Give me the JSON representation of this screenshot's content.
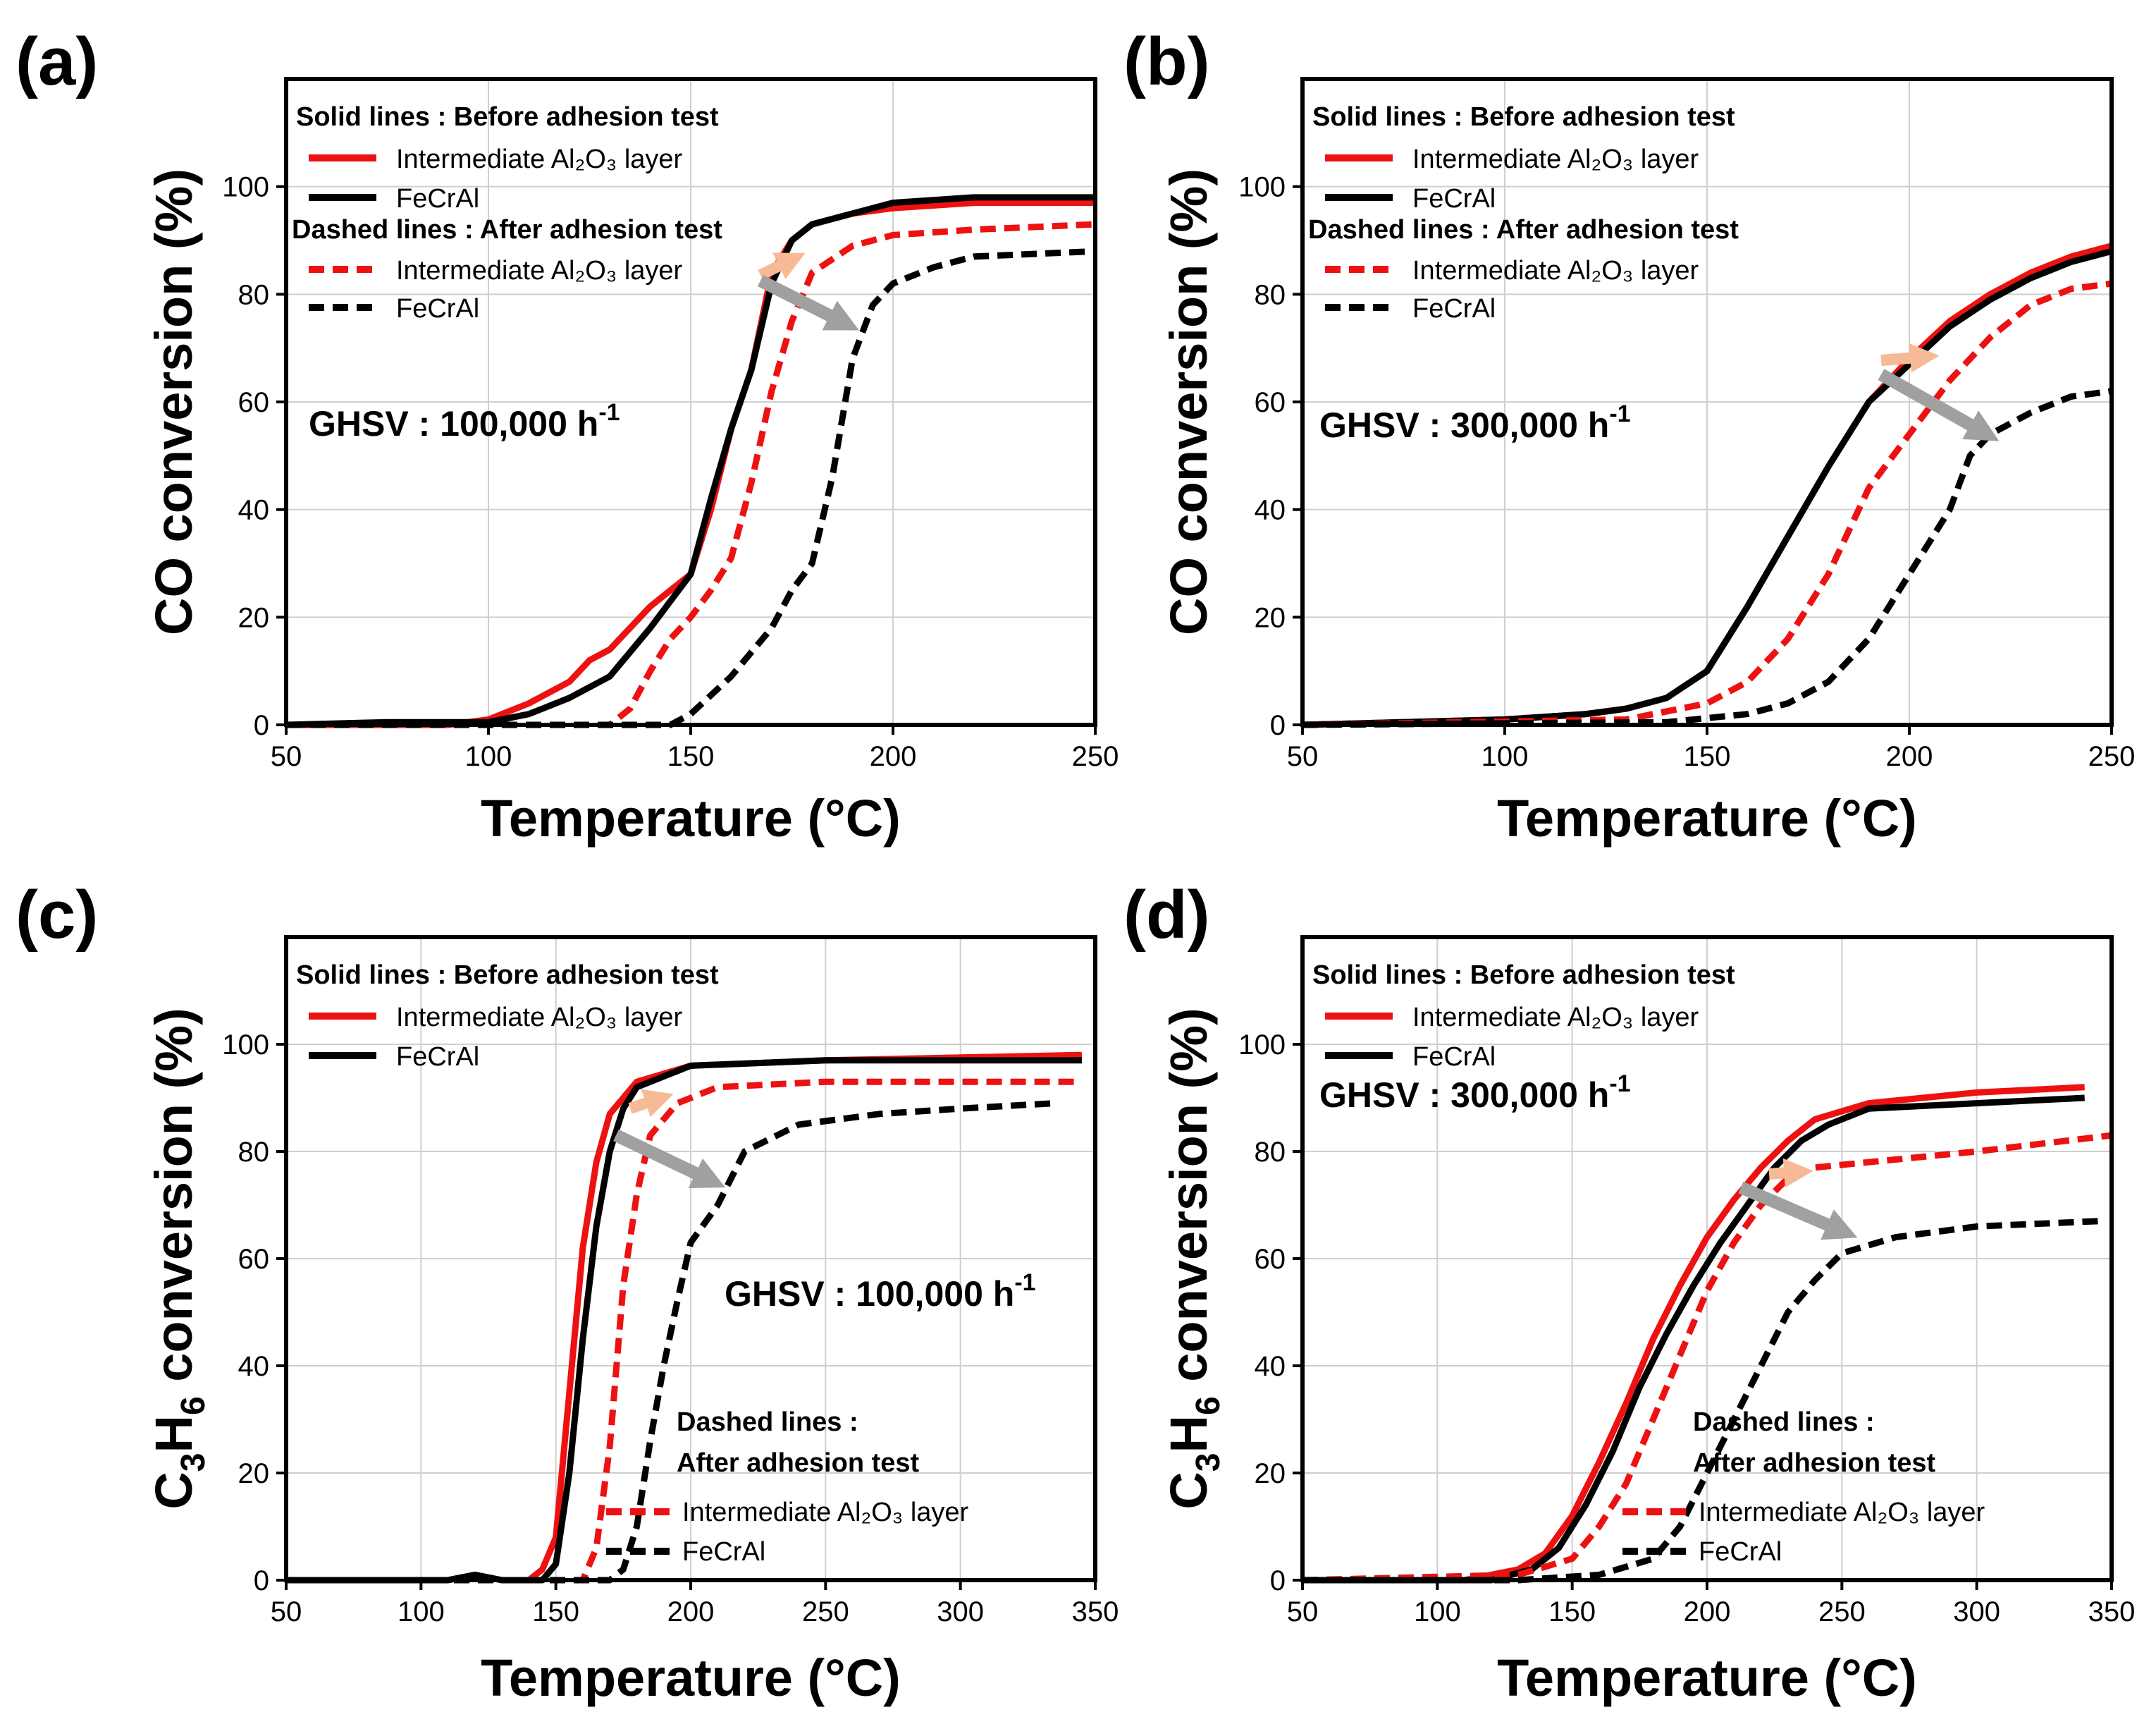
{
  "colors": {
    "intermediate": "#ee1111",
    "fecral": "#000000",
    "grid": "#cfcfcf",
    "arrow_orange": "#f6bb96",
    "arrow_gray": "#a0a0a0"
  },
  "chart_data": [
    {
      "type": "line",
      "panel_label": "(a)",
      "xlabel": "Temperature (°C)",
      "ylabel_main": "CO conversion (%)",
      "ylabel_sub": "",
      "xlim": [
        50,
        250
      ],
      "ylim": [
        0,
        120
      ],
      "xticks": [
        50,
        100,
        150,
        200,
        250
      ],
      "yticks": [
        0,
        20,
        40,
        60,
        80,
        100
      ],
      "grid": true,
      "ghsv": {
        "label": "GHSV  : 100,000 h",
        "sup": "-1"
      },
      "legend_solid_header": "Solid lines : Before adhesion test",
      "legend_dashed_header": "Dashed lines : After adhesion test",
      "legend_dashed_header_line1": "",
      "legend_dashed_header_line2": "",
      "legend_entries": [
        "Intermediate Al₂O₃ layer",
        "FeCrAl",
        "Intermediate Al₂O₃ layer",
        "FeCrAl"
      ],
      "series": [
        {
          "name": "Intermediate Al2O3 layer (before)",
          "style": "solid",
          "color": "intermediate",
          "x": [
            50,
            90,
            100,
            110,
            120,
            125,
            130,
            140,
            145,
            150,
            155,
            160,
            165,
            170,
            175,
            180,
            190,
            200,
            220,
            250
          ],
          "y": [
            0,
            0,
            1,
            4,
            8,
            12,
            14,
            22,
            25,
            28,
            40,
            55,
            66,
            84,
            90,
            93,
            95,
            96,
            97,
            97
          ]
        },
        {
          "name": "FeCrAl (before)",
          "style": "solid",
          "color": "fecral",
          "x": [
            50,
            75,
            100,
            110,
            120,
            130,
            140,
            145,
            150,
            155,
            160,
            165,
            170,
            175,
            180,
            190,
            200,
            220,
            250
          ],
          "y": [
            0,
            0.5,
            0.5,
            2,
            5,
            9,
            18,
            23,
            28,
            42,
            55,
            66,
            82,
            90,
            93,
            95,
            97,
            98,
            98
          ]
        },
        {
          "name": "Intermediate Al2O3 layer (after)",
          "style": "dashed",
          "color": "intermediate",
          "x": [
            50,
            130,
            135,
            140,
            145,
            150,
            155,
            160,
            165,
            170,
            175,
            180,
            190,
            200,
            220,
            250
          ],
          "y": [
            0,
            0,
            3,
            10,
            16,
            20,
            25,
            31,
            45,
            62,
            75,
            84,
            89,
            91,
            92,
            93
          ]
        },
        {
          "name": "FeCrAl (after)",
          "style": "dashed",
          "color": "fecral",
          "x": [
            50,
            145,
            150,
            160,
            170,
            175,
            180,
            185,
            190,
            195,
            200,
            210,
            220,
            250
          ],
          "y": [
            0,
            0,
            2,
            9,
            18,
            25,
            30,
            46,
            68,
            78,
            82,
            85,
            87,
            88
          ]
        }
      ]
    },
    {
      "type": "line",
      "panel_label": "(b)",
      "xlabel": "Temperature (°C)",
      "ylabel_main": "CO conversion (%)",
      "ylabel_sub": "",
      "xlim": [
        50,
        250
      ],
      "ylim": [
        0,
        120
      ],
      "xticks": [
        50,
        100,
        150,
        200,
        250
      ],
      "yticks": [
        0,
        20,
        40,
        60,
        80,
        100
      ],
      "grid": true,
      "ghsv": {
        "label": "GHSV  : 300,000 h",
        "sup": "-1"
      },
      "legend_solid_header": "Solid lines : Before adhesion test",
      "legend_dashed_header": "Dashed lines : After adhesion test",
      "legend_dashed_header_line1": "",
      "legend_dashed_header_line2": "",
      "legend_entries": [
        "Intermediate Al₂O₃ layer",
        "FeCrAl",
        "Intermediate Al₂O₃ layer",
        "FeCrAl"
      ],
      "series": [
        {
          "name": "Intermediate Al2O3 layer (before)",
          "style": "solid",
          "color": "intermediate",
          "x": [
            50,
            100,
            120,
            130,
            140,
            150,
            160,
            170,
            180,
            190,
            200,
            210,
            220,
            230,
            240,
            250
          ],
          "y": [
            0,
            1,
            2,
            3,
            5,
            10,
            22,
            35,
            48,
            60,
            68,
            75,
            80,
            84,
            87,
            89
          ]
        },
        {
          "name": "FeCrAl (before)",
          "style": "solid",
          "color": "fecral",
          "x": [
            50,
            100,
            120,
            130,
            140,
            150,
            160,
            170,
            180,
            190,
            200,
            210,
            220,
            230,
            240,
            250
          ],
          "y": [
            0,
            1,
            2,
            3,
            5,
            10,
            22,
            35,
            48,
            60,
            67,
            74,
            79,
            83,
            86,
            88
          ]
        },
        {
          "name": "Intermediate Al2O3 layer (after)",
          "style": "dashed",
          "color": "intermediate",
          "x": [
            50,
            130,
            150,
            160,
            170,
            180,
            190,
            200,
            210,
            220,
            230,
            240,
            250
          ],
          "y": [
            0,
            1,
            4,
            8,
            16,
            28,
            44,
            54,
            64,
            72,
            78,
            81,
            82
          ]
        },
        {
          "name": "FeCrAl (after)",
          "style": "dashed",
          "color": "fecral",
          "x": [
            50,
            140,
            160,
            170,
            180,
            190,
            200,
            210,
            215,
            220,
            230,
            240,
            250
          ],
          "y": [
            0,
            0.5,
            2,
            4,
            8,
            16,
            28,
            40,
            50,
            54,
            58,
            61,
            62
          ]
        }
      ]
    },
    {
      "type": "line",
      "panel_label": "(c)",
      "xlabel": "Temperature (°C)",
      "ylabel_main": "C",
      "ylabel_sub": "3",
      "ylabel_main2": "H",
      "ylabel_sub2": "6",
      "ylabel_rest": " conversion (%)",
      "xlim": [
        50,
        350
      ],
      "ylim": [
        0,
        120
      ],
      "xticks": [
        50,
        100,
        150,
        200,
        250,
        300,
        350
      ],
      "yticks": [
        0,
        20,
        40,
        60,
        80,
        100
      ],
      "grid": true,
      "ghsv": {
        "label": "GHSV  : 100,000 h",
        "sup": "-1"
      },
      "legend_solid_header": "Solid lines : Before adhesion test",
      "legend_dashed_header": "",
      "legend_dashed_header_line1": "Dashed lines :",
      "legend_dashed_header_line2": "After adhesion test",
      "legend_entries": [
        "Intermediate Al₂O₃ layer",
        "FeCrAl",
        "Intermediate Al₂O₃ layer",
        "FeCrAl"
      ],
      "series": [
        {
          "name": "Intermediate Al2O3 layer (before)",
          "style": "solid",
          "color": "intermediate",
          "x": [
            50,
            110,
            120,
            130,
            140,
            145,
            150,
            155,
            160,
            165,
            170,
            180,
            200,
            250,
            345
          ],
          "y": [
            0,
            0,
            1,
            0,
            0,
            2,
            8,
            35,
            62,
            78,
            87,
            93,
            96,
            97,
            98
          ]
        },
        {
          "name": "FeCrAl (before)",
          "style": "solid",
          "color": "fecral",
          "x": [
            50,
            110,
            120,
            130,
            140,
            145,
            150,
            155,
            160,
            165,
            170,
            175,
            180,
            200,
            250,
            345
          ],
          "y": [
            0,
            0,
            1,
            0,
            0,
            0,
            3,
            20,
            45,
            66,
            80,
            88,
            92,
            96,
            97,
            97
          ]
        },
        {
          "name": "Intermediate Al2O3 layer (after)",
          "style": "dashed",
          "color": "intermediate",
          "x": [
            50,
            160,
            165,
            170,
            175,
            180,
            185,
            195,
            210,
            250,
            345
          ],
          "y": [
            0,
            0,
            6,
            25,
            55,
            72,
            83,
            89,
            92,
            93,
            93
          ]
        },
        {
          "name": "FeCrAl (after)",
          "style": "dashed",
          "color": "fecral",
          "x": [
            50,
            170,
            175,
            180,
            185,
            190,
            195,
            200,
            210,
            220,
            240,
            270,
            300,
            335
          ],
          "y": [
            0,
            0,
            2,
            10,
            26,
            40,
            52,
            63,
            70,
            80,
            85,
            87,
            88,
            89
          ]
        }
      ]
    },
    {
      "type": "line",
      "panel_label": "(d)",
      "xlabel": "Temperature (°C)",
      "ylabel_main": "C",
      "ylabel_sub": "3",
      "ylabel_main2": "H",
      "ylabel_sub2": "6",
      "ylabel_rest": " conversion (%)",
      "xlim": [
        50,
        350
      ],
      "ylim": [
        0,
        120
      ],
      "xticks": [
        50,
        100,
        150,
        200,
        250,
        300,
        350
      ],
      "yticks": [
        0,
        20,
        40,
        60,
        80,
        100
      ],
      "grid": true,
      "ghsv": {
        "label": "GHSV  : 300,000 h",
        "sup": "-1"
      },
      "legend_solid_header": "Solid lines : Before adhesion test",
      "legend_dashed_header": "",
      "legend_dashed_header_line1": "Dashed lines :",
      "legend_dashed_header_line2": "After adhesion test",
      "legend_entries": [
        "Intermediate Al₂O₃ layer",
        "FeCrAl",
        "Intermediate Al₂O₃ layer",
        "FeCrAl"
      ],
      "series": [
        {
          "name": "Intermediate Al2O3 layer (before)",
          "style": "solid",
          "color": "intermediate",
          "x": [
            50,
            110,
            130,
            140,
            150,
            160,
            170,
            180,
            190,
            200,
            210,
            220,
            230,
            240,
            260,
            300,
            340
          ],
          "y": [
            0,
            0,
            2,
            5,
            12,
            22,
            33,
            45,
            55,
            64,
            71,
            77,
            82,
            86,
            89,
            91,
            92
          ]
        },
        {
          "name": "FeCrAl (before)",
          "style": "solid",
          "color": "fecral",
          "x": [
            50,
            120,
            135,
            145,
            155,
            165,
            175,
            185,
            195,
            205,
            215,
            225,
            235,
            245,
            260,
            300,
            340
          ],
          "y": [
            0,
            0,
            2,
            6,
            14,
            24,
            36,
            46,
            55,
            63,
            70,
            77,
            82,
            85,
            88,
            89,
            90
          ]
        },
        {
          "name": "Intermediate Al2O3 layer (after)",
          "style": "dashed",
          "color": "intermediate",
          "x": [
            50,
            130,
            150,
            160,
            170,
            180,
            190,
            200,
            210,
            220,
            230,
            240,
            260,
            300,
            350
          ],
          "y": [
            0,
            1,
            4,
            10,
            18,
            30,
            42,
            54,
            63,
            70,
            75,
            77,
            78,
            80,
            83
          ]
        },
        {
          "name": "FeCrAl (after)",
          "style": "dashed",
          "color": "fecral",
          "x": [
            50,
            130,
            160,
            180,
            190,
            200,
            210,
            220,
            230,
            240,
            250,
            270,
            300,
            345
          ],
          "y": [
            0,
            0,
            1,
            4,
            10,
            20,
            30,
            40,
            50,
            56,
            61,
            64,
            66,
            67
          ]
        }
      ]
    }
  ]
}
